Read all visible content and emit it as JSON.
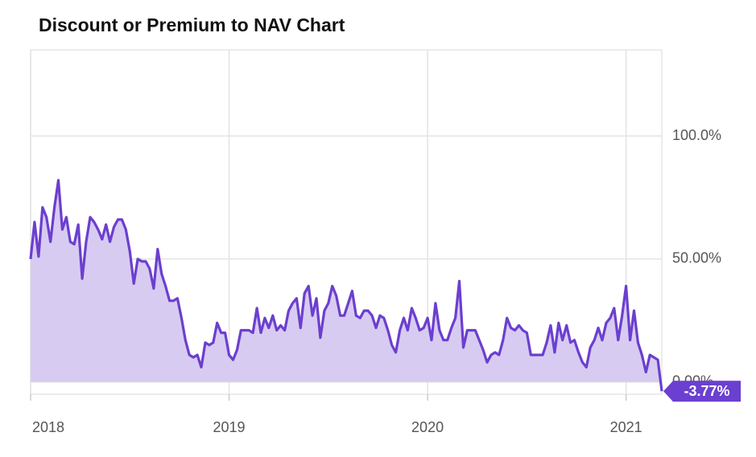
{
  "chart_data": {
    "type": "area",
    "title": "Discount or Premium to NAV Chart",
    "color": "#6b3fcf",
    "fill": "#d8cbf1",
    "grid": true,
    "x": [
      2018,
      2018.02,
      2018.04,
      2018.06,
      2018.08,
      2018.1,
      2018.12,
      2018.14,
      2018.16,
      2018.18,
      2018.2,
      2018.22,
      2018.24,
      2018.26,
      2018.28,
      2018.3,
      2018.32,
      2018.34,
      2018.36,
      2018.38,
      2018.4,
      2018.42,
      2018.44,
      2018.46,
      2018.48,
      2018.5,
      2018.52,
      2018.54,
      2018.56,
      2018.58,
      2018.6,
      2018.62,
      2018.64,
      2018.66,
      2018.68,
      2018.7,
      2018.72,
      2018.74,
      2018.76,
      2018.78,
      2018.8,
      2018.82,
      2018.84,
      2018.86,
      2018.88,
      2018.9,
      2018.92,
      2018.94,
      2018.96,
      2018.98,
      2019,
      2019.02,
      2019.04,
      2019.06,
      2019.08,
      2019.1,
      2019.12,
      2019.14,
      2019.16,
      2019.18,
      2019.2,
      2019.22,
      2019.24,
      2019.26,
      2019.28,
      2019.3,
      2019.32,
      2019.34,
      2019.36,
      2019.38,
      2019.4,
      2019.42,
      2019.44,
      2019.46,
      2019.48,
      2019.5,
      2019.52,
      2019.54,
      2019.56,
      2019.58,
      2019.6,
      2019.62,
      2019.64,
      2019.66,
      2019.68,
      2019.7,
      2019.72,
      2019.74,
      2019.76,
      2019.78,
      2019.8,
      2019.82,
      2019.84,
      2019.86,
      2019.88,
      2019.9,
      2019.92,
      2019.94,
      2019.96,
      2019.98,
      2020,
      2020.02,
      2020.04,
      2020.06,
      2020.08,
      2020.1,
      2020.12,
      2020.14,
      2020.16,
      2020.18,
      2020.2,
      2020.22,
      2020.24,
      2020.26,
      2020.28,
      2020.3,
      2020.32,
      2020.34,
      2020.36,
      2020.38,
      2020.4,
      2020.42,
      2020.44,
      2020.46,
      2020.48,
      2020.5,
      2020.52,
      2020.54,
      2020.56,
      2020.58,
      2020.6,
      2020.62,
      2020.64,
      2020.66,
      2020.68,
      2020.7,
      2020.72,
      2020.74,
      2020.76,
      2020.78,
      2020.8,
      2020.82,
      2020.84,
      2020.86,
      2020.88,
      2020.9,
      2020.92,
      2020.94,
      2020.96,
      2020.98,
      2021,
      2021.02,
      2021.04,
      2021.06,
      2021.08,
      2021.1,
      2021.12,
      2021.14,
      2021.16,
      2021.18
    ],
    "values": [
      50,
      65,
      51,
      71,
      67,
      57,
      71,
      82,
      62,
      67,
      57,
      56,
      64,
      42,
      57,
      67,
      65,
      62,
      58,
      64,
      57,
      63,
      66,
      66,
      62,
      53,
      40,
      50,
      49,
      49,
      46,
      38,
      54,
      44,
      39,
      33,
      33,
      34,
      26,
      17,
      11,
      10,
      11,
      6,
      16,
      15,
      16,
      24,
      20,
      20,
      11,
      9,
      13,
      21,
      21,
      21,
      20,
      30,
      20,
      26,
      22,
      27,
      21,
      23,
      21,
      29,
      32,
      34,
      22,
      36,
      39,
      27,
      34,
      18,
      29,
      32,
      39,
      35,
      27,
      27,
      32,
      37,
      27,
      26,
      29,
      29,
      27,
      22,
      27,
      26,
      21,
      15,
      12,
      21,
      26,
      21,
      30,
      26,
      21,
      22,
      26,
      17,
      32,
      21,
      17,
      17,
      22,
      26,
      41,
      14,
      21,
      21,
      21,
      17,
      13,
      8,
      11,
      12,
      11,
      17,
      26,
      22,
      21,
      23,
      21,
      20,
      11,
      11,
      11,
      11,
      16,
      23,
      12,
      24,
      17,
      23,
      16,
      17,
      12,
      8,
      6,
      14,
      17,
      22,
      17,
      24,
      26,
      30,
      17,
      27,
      39,
      17,
      29,
      16,
      11,
      4,
      11,
      10,
      9,
      -3.77
    ],
    "value_labels": [
      null,
      null,
      null,
      null,
      null,
      null,
      null,
      null,
      null,
      null,
      null,
      null,
      null,
      null,
      null,
      null,
      null,
      null,
      null,
      null,
      null,
      null,
      null,
      null,
      null,
      null,
      null,
      null,
      null,
      null,
      null,
      null,
      null,
      null,
      null,
      null,
      null,
      null,
      null,
      null,
      null,
      null,
      null,
      null,
      null,
      null,
      null,
      null,
      null,
      null,
      null,
      null,
      null,
      null,
      null,
      null,
      null,
      null,
      null,
      null,
      null,
      null,
      null,
      null,
      null,
      null,
      null,
      null,
      null,
      null,
      null,
      null,
      null,
      null,
      null,
      null,
      null,
      null,
      null,
      null,
      null,
      null,
      null,
      null,
      null,
      null,
      null,
      null,
      null,
      null,
      null,
      null,
      null,
      null,
      null,
      null,
      null,
      null,
      null,
      null,
      null,
      null,
      null,
      null,
      null,
      null,
      null,
      null,
      null,
      null,
      null,
      null,
      null,
      null,
      null,
      null,
      null,
      null,
      null,
      null,
      null,
      null,
      null,
      null,
      null,
      null,
      null,
      null,
      null,
      null,
      null,
      null,
      null,
      null,
      null,
      null,
      null,
      null,
      null,
      null,
      null,
      null,
      null,
      null,
      null,
      null,
      null,
      null,
      null,
      null,
      null,
      null,
      null,
      null,
      null,
      null,
      null,
      null,
      null,
      "-3.77%"
    ],
    "xlim": [
      2018,
      2021.18
    ],
    "xticks": [
      2018,
      2019,
      2020,
      2021
    ],
    "ylim": [
      -5,
      135
    ],
    "yticks": [
      {
        "value": 0,
        "label": "0.00%"
      },
      {
        "value": 50,
        "label": "50.00%"
      },
      {
        "value": 100,
        "label": "100.0%"
      }
    ]
  }
}
